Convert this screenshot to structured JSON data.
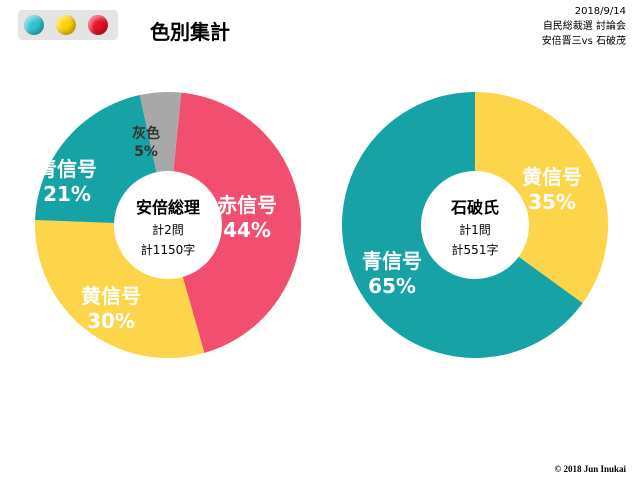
{
  "header": {
    "title": "色別集計",
    "date": "2018/9/14",
    "event": "自民総裁選 討論会",
    "matchup": "安倍晋三vs 石破茂"
  },
  "signal_lamps": [
    {
      "name": "blue-lamp-icon",
      "color": "#2ec4cf"
    },
    {
      "name": "yellow-lamp-icon",
      "color": "#ffd200"
    },
    {
      "name": "red-lamp-icon",
      "color": "#e8102a"
    }
  ],
  "colors": {
    "red": "#f24e6f",
    "yellow": "#fcd54a",
    "teal": "#17a3a5",
    "gray": "#a8a8a8",
    "label_light": "#ffffff",
    "label_dark": "#333333"
  },
  "chart_data": [
    {
      "type": "pie",
      "center_title": "安倍総理",
      "center_line1": "計2問",
      "center_line2": "計1150字",
      "slices": [
        {
          "label": "赤信号",
          "value": 44,
          "pct_text": "44%",
          "color": "#f24e6f"
        },
        {
          "label": "黄信号",
          "value": 30,
          "pct_text": "30%",
          "color": "#fcd54a"
        },
        {
          "label": "青信号",
          "value": 21,
          "pct_text": "21%",
          "color": "#17a3a5"
        },
        {
          "label": "灰色",
          "value": 5,
          "pct_text": "5%",
          "color": "#a8a8a8"
        }
      ]
    },
    {
      "type": "pie",
      "center_title": "石破氏",
      "center_line1": "計1問",
      "center_line2": "計551字",
      "slices": [
        {
          "label": "黄信号",
          "value": 35,
          "pct_text": "35%",
          "color": "#fcd54a"
        },
        {
          "label": "青信号",
          "value": 65,
          "pct_text": "65%",
          "color": "#17a3a5"
        }
      ]
    }
  ],
  "footer": {
    "copyright": "© 2018 Jun Inukai"
  }
}
